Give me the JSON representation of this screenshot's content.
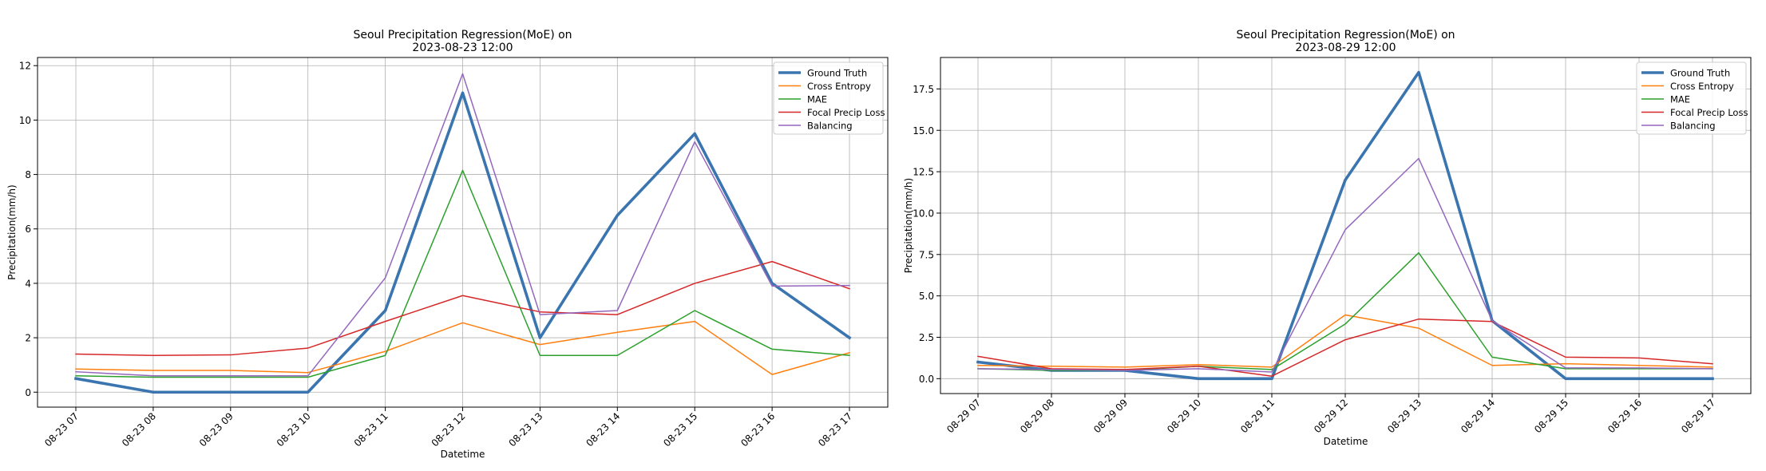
{
  "chart_data": [
    {
      "type": "line",
      "title_line1": "Seoul Precipitation Regression(MoE) on",
      "title_line2": "2023-08-23 12:00",
      "xlabel": "Datetime",
      "ylabel": "Precipitation(mm/h)",
      "ylim": [
        -0.55,
        12.3
      ],
      "yticks": [
        0,
        2,
        4,
        6,
        8,
        10,
        12
      ],
      "ytick_labels": [
        "0",
        "2",
        "4",
        "6",
        "8",
        "10",
        "12"
      ],
      "grid": true,
      "legend_position": "top-right",
      "categories": [
        "08-23 07",
        "08-23 08",
        "08-23 09",
        "08-23 10",
        "08-23 11",
        "08-23 12",
        "08-23 13",
        "08-23 14",
        "08-23 15",
        "08-23 16",
        "08-23 17"
      ],
      "series": [
        {
          "name": "Ground Truth",
          "color": "#3a75b0",
          "bold": true,
          "values": [
            0.5,
            0.0,
            0.0,
            0.0,
            3.0,
            11.0,
            2.0,
            6.5,
            9.5,
            4.0,
            2.0
          ]
        },
        {
          "name": "Cross Entropy",
          "color": "#ff7f0e",
          "values": [
            0.85,
            0.8,
            0.8,
            0.72,
            1.5,
            2.55,
            1.75,
            2.2,
            2.6,
            0.65,
            1.45
          ]
        },
        {
          "name": "MAE",
          "color": "#2ca02c",
          "values": [
            0.6,
            0.55,
            0.55,
            0.55,
            1.35,
            8.15,
            1.35,
            1.35,
            3.0,
            1.58,
            1.35
          ]
        },
        {
          "name": "Focal Precip Loss",
          "color": "#d62728",
          "values": [
            1.4,
            1.35,
            1.37,
            1.62,
            2.6,
            3.55,
            2.95,
            2.85,
            4.0,
            4.8,
            3.8
          ]
        },
        {
          "name": "Balancing",
          "color": "#9467bd",
          "values": [
            0.75,
            0.6,
            0.6,
            0.6,
            4.2,
            11.7,
            2.85,
            3.0,
            9.2,
            3.9,
            3.92
          ]
        }
      ]
    },
    {
      "type": "line",
      "title_line1": "Seoul Precipitation Regression(MoE) on",
      "title_line2": "2023-08-29 12:00",
      "xlabel": "Datetime",
      "ylabel": "Precipitation(mm/h)",
      "ylim": [
        -0.9,
        19.4
      ],
      "yticks": [
        0,
        2.5,
        5,
        7.5,
        10,
        12.5,
        15,
        17.5
      ],
      "ytick_labels": [
        "0.0",
        "2.5",
        "5.0",
        "7.5",
        "10.0",
        "12.5",
        "15.0",
        "17.5"
      ],
      "grid": true,
      "legend_position": "top-right",
      "categories": [
        "08-29 07",
        "08-29 08",
        "08-29 09",
        "08-29 10",
        "08-29 11",
        "08-29 12",
        "08-29 13",
        "08-29 14",
        "08-29 15",
        "08-29 16",
        "08-29 17"
      ],
      "series": [
        {
          "name": "Ground Truth",
          "color": "#3a75b0",
          "bold": true,
          "values": [
            1.0,
            0.5,
            0.5,
            0.0,
            0.0,
            12.0,
            18.5,
            3.5,
            0.0,
            0.0,
            0.0
          ]
        },
        {
          "name": "Cross Entropy",
          "color": "#ff7f0e",
          "values": [
            0.8,
            0.75,
            0.7,
            0.85,
            0.7,
            3.85,
            3.05,
            0.8,
            0.9,
            0.8,
            0.7
          ]
        },
        {
          "name": "MAE",
          "color": "#2ca02c",
          "values": [
            0.6,
            0.5,
            0.5,
            0.75,
            0.55,
            3.3,
            7.6,
            1.3,
            0.6,
            0.6,
            0.6
          ]
        },
        {
          "name": "Focal Precip Loss",
          "color": "#d62728",
          "values": [
            1.35,
            0.6,
            0.55,
            0.75,
            0.15,
            2.35,
            3.6,
            3.45,
            1.3,
            1.25,
            0.9
          ]
        },
        {
          "name": "Balancing",
          "color": "#9467bd",
          "values": [
            0.6,
            0.55,
            0.5,
            0.6,
            0.4,
            9.0,
            13.3,
            3.5,
            0.65,
            0.65,
            0.6
          ]
        }
      ]
    }
  ]
}
